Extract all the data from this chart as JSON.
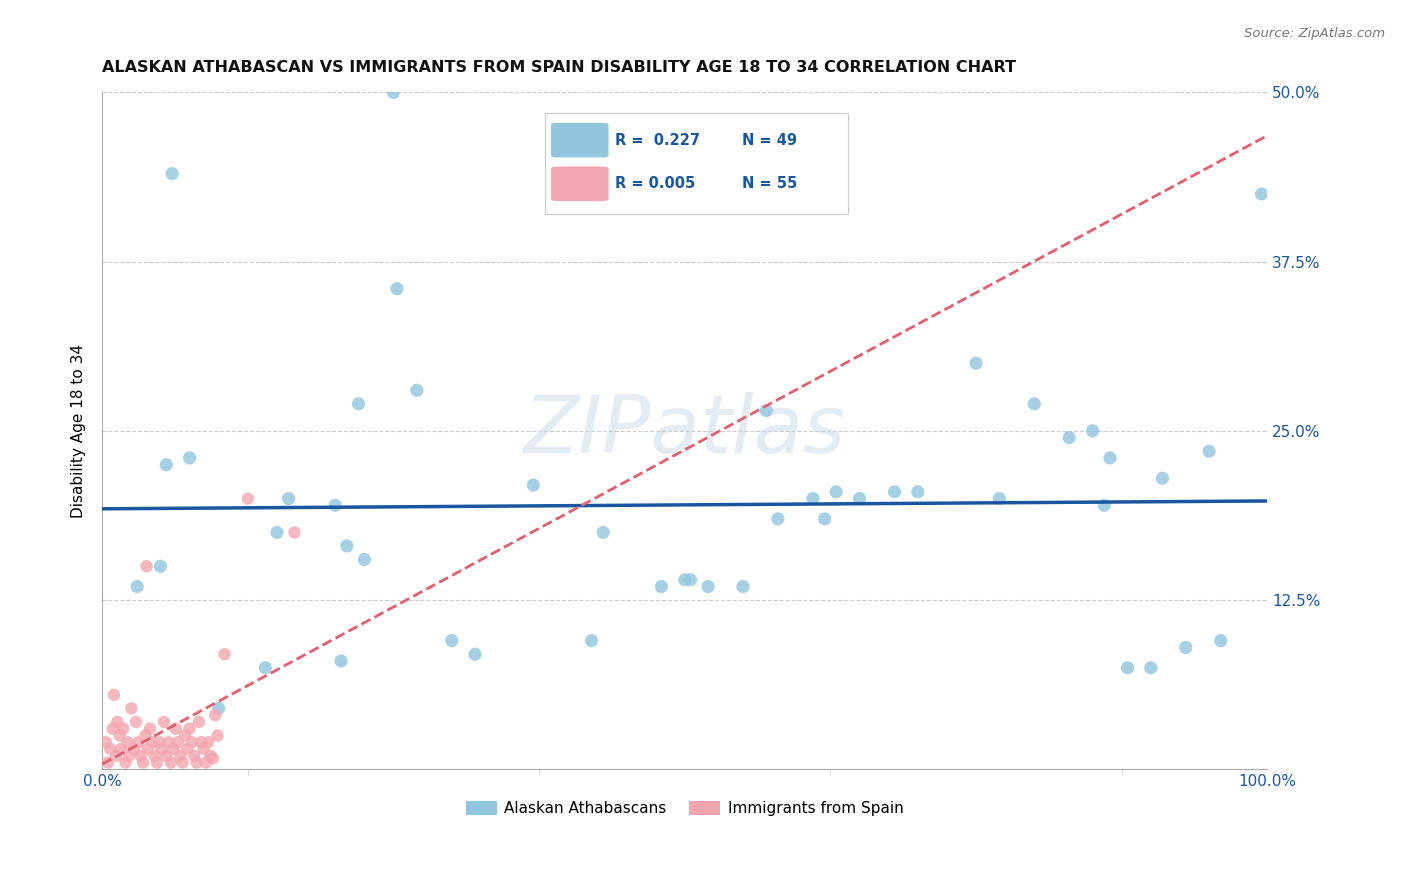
{
  "title": "ALASKAN ATHABASCAN VS IMMIGRANTS FROM SPAIN DISABILITY AGE 18 TO 34 CORRELATION CHART",
  "source": "Source: ZipAtlas.com",
  "ylabel": "Disability Age 18 to 34",
  "xlim": [
    0,
    100
  ],
  "ylim": [
    0,
    50
  ],
  "yticks": [
    0,
    12.5,
    25.0,
    37.5,
    50.0
  ],
  "ytick_labels": [
    "",
    "12.5%",
    "25.0%",
    "37.5%",
    "50.0%"
  ],
  "blue_color": "#92c5de",
  "pink_color": "#f4a6b0",
  "blue_line_color": "#1a56a0",
  "pink_line_color": "#e06070",
  "legend_label1": "Alaskan Athabascans",
  "legend_label2": "Immigrants from Spain",
  "blue_R": 0.227,
  "blue_N": 49,
  "pink_R": 0.005,
  "pink_N": 55,
  "watermark": "ZIPatlas",
  "blue_x": [
    25.0,
    25.3,
    5.5,
    20.0,
    21.0,
    22.0,
    7.5,
    99.5,
    55.0,
    5.0,
    10.0,
    65.0,
    62.0,
    68.0,
    75.0,
    80.0,
    86.0,
    88.0,
    90.0,
    93.0,
    96.0,
    16.0,
    32.0,
    43.0,
    52.0,
    50.0,
    22.5,
    15.0,
    27.0,
    37.0,
    58.0,
    63.0,
    70.0,
    77.0,
    83.0,
    85.0,
    91.0,
    6.0,
    48.0,
    50.5,
    57.0,
    86.5,
    95.0,
    3.0,
    14.0,
    20.5,
    30.0,
    42.0,
    61.0
  ],
  "blue_y": [
    50.0,
    35.5,
    22.5,
    19.5,
    16.5,
    27.0,
    23.0,
    42.5,
    13.5,
    15.0,
    4.5,
    20.0,
    18.5,
    20.5,
    30.0,
    27.0,
    19.5,
    7.5,
    7.5,
    9.0,
    9.5,
    20.0,
    8.5,
    17.5,
    13.5,
    14.0,
    15.5,
    17.5,
    28.0,
    21.0,
    18.5,
    20.5,
    20.5,
    20.0,
    24.5,
    25.0,
    21.5,
    44.0,
    13.5,
    14.0,
    26.5,
    23.0,
    23.5,
    13.5,
    7.5,
    8.0,
    9.5,
    9.5,
    20.0
  ],
  "pink_x": [
    0.3,
    0.5,
    0.7,
    0.9,
    1.0,
    1.2,
    1.3,
    1.5,
    1.6,
    1.8,
    2.0,
    2.2,
    2.3,
    2.5,
    2.7,
    2.9,
    3.1,
    3.3,
    3.5,
    3.7,
    3.9,
    4.1,
    4.3,
    4.5,
    4.7,
    4.9,
    5.1,
    5.3,
    5.5,
    5.7,
    5.9,
    6.1,
    6.3,
    6.5,
    6.7,
    6.9,
    7.1,
    7.3,
    7.5,
    7.7,
    7.9,
    8.1,
    8.3,
    8.5,
    8.7,
    8.9,
    9.1,
    9.3,
    9.5,
    9.7,
    9.9,
    10.5,
    12.5,
    16.5,
    3.8
  ],
  "pink_y": [
    2.0,
    0.5,
    1.5,
    3.0,
    5.5,
    1.0,
    3.5,
    2.5,
    1.5,
    3.0,
    0.5,
    2.0,
    1.0,
    4.5,
    1.5,
    3.5,
    2.0,
    1.0,
    0.5,
    2.5,
    1.5,
    3.0,
    2.0,
    1.0,
    0.5,
    2.0,
    1.5,
    3.5,
    1.0,
    2.0,
    0.5,
    1.5,
    3.0,
    2.0,
    1.0,
    0.5,
    2.5,
    1.5,
    3.0,
    2.0,
    1.0,
    0.5,
    3.5,
    2.0,
    1.5,
    0.5,
    2.0,
    1.0,
    0.8,
    4.0,
    2.5,
    8.5,
    20.0,
    17.5,
    15.0
  ]
}
